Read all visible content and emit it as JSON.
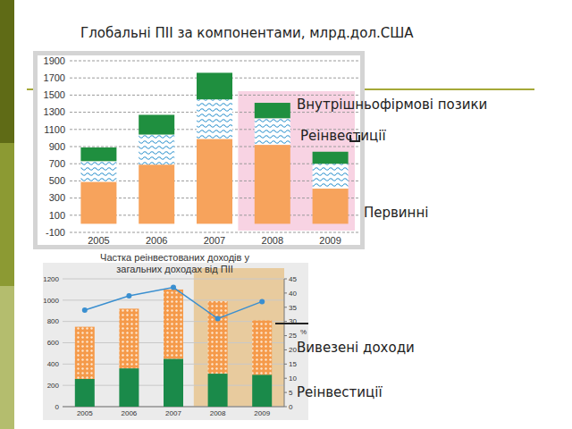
{
  "chart_data": [
    {
      "type": "bar",
      "title": "Глобальні ПІІ за компонентами, млрд.дол.США",
      "categories": [
        "2005",
        "2006",
        "2007",
        "2008",
        "2009"
      ],
      "series": [
        {
          "name": "Первинні",
          "color": "#f7a35c",
          "values": [
            490,
            690,
            990,
            920,
            410
          ]
        },
        {
          "name": "Реінвестиції",
          "color": "#3d9ad1",
          "values": [
            240,
            350,
            460,
            310,
            290
          ]
        },
        {
          "name": "Внутрішньофірмові позики",
          "color": "#1f8f3f",
          "values": [
            160,
            230,
            310,
            180,
            140
          ]
        }
      ],
      "stacked": true,
      "ylim": [
        -100,
        1900
      ],
      "yticks": [
        -100,
        100,
        300,
        500,
        700,
        900,
        1100,
        1300,
        1500,
        1700,
        1900
      ],
      "grid": true,
      "legend": "right"
    },
    {
      "type": "bar",
      "categories": [
        "2005",
        "2006",
        "2007",
        "2008",
        "2009"
      ],
      "series": [
        {
          "name": "Реінвестиції",
          "color": "#1a8a4a",
          "values": [
            260,
            360,
            450,
            310,
            300
          ]
        },
        {
          "name": "Вивезені доходи",
          "color": "#f59a4a",
          "values": [
            490,
            560,
            650,
            680,
            510
          ]
        },
        {
          "name": "Частка реінвестованих доходів у загальних доходах від ПІІ",
          "type": "line",
          "axis": "y2",
          "color": "#3a8fd0",
          "marker": "circle",
          "values": [
            34,
            39,
            42,
            31,
            37
          ]
        }
      ],
      "stacked": true,
      "ylim": [
        0,
        1200
      ],
      "yticks": [
        0,
        200,
        400,
        600,
        800,
        1000,
        1200
      ],
      "y2lim": [
        0,
        45
      ],
      "y2ticks": [
        0,
        5,
        10,
        15,
        20,
        25,
        30,
        35,
        40,
        45
      ],
      "y2label": "%",
      "grid": true,
      "legend": "right"
    }
  ]
}
